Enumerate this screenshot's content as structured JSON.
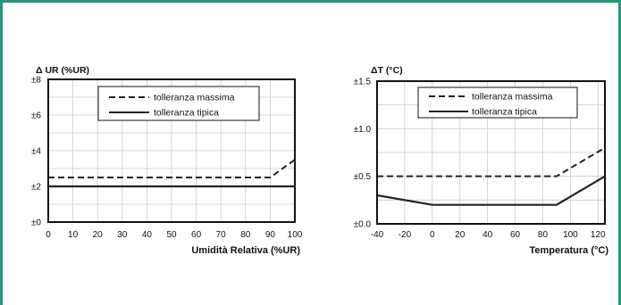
{
  "chart_data": [
    {
      "type": "line",
      "ylabel": "Δ UR (%UR)",
      "xlabel": "Umidità Relativa (%UR)",
      "xlim": [
        0,
        100
      ],
      "ylim": [
        0,
        8
      ],
      "x_ticks": [
        "0",
        "10",
        "20",
        "30",
        "40",
        "50",
        "60",
        "70",
        "80",
        "90",
        "100"
      ],
      "y_ticks": [
        "±0",
        "±2",
        "±4",
        "±6",
        "±8"
      ],
      "grid": true,
      "legend_position": "top-right",
      "series": [
        {
          "name": "tolleranza massima",
          "style": "dashed",
          "x": [
            0,
            90,
            100
          ],
          "y": [
            2.5,
            2.5,
            3.5
          ]
        },
        {
          "name": "tolleranza tipica",
          "style": "solid",
          "x": [
            0,
            100
          ],
          "y": [
            2,
            2
          ]
        }
      ]
    },
    {
      "type": "line",
      "ylabel": "ΔT (°C)",
      "xlabel": "Temperatura (°C)",
      "xlim": [
        -40,
        125
      ],
      "ylim": [
        0,
        1.5
      ],
      "x_ticks": [
        "-40",
        "-20",
        "0",
        "20",
        "40",
        "60",
        "80",
        "100",
        "120"
      ],
      "y_ticks": [
        "±0.0",
        "±0.5",
        "±1.0",
        "±1.5"
      ],
      "grid": true,
      "legend_position": "top-right",
      "series": [
        {
          "name": "tolleranza massima",
          "style": "dashed",
          "x": [
            -40,
            90,
            125
          ],
          "y": [
            0.5,
            0.5,
            0.8
          ]
        },
        {
          "name": "tolleranza tipica",
          "style": "solid",
          "x": [
            -40,
            0,
            90,
            125
          ],
          "y": [
            0.3,
            0.2,
            0.2,
            0.5
          ]
        }
      ]
    }
  ],
  "colors": {
    "frame": "#1f9a7e",
    "line": "#222222",
    "grid": "#cccccc"
  }
}
